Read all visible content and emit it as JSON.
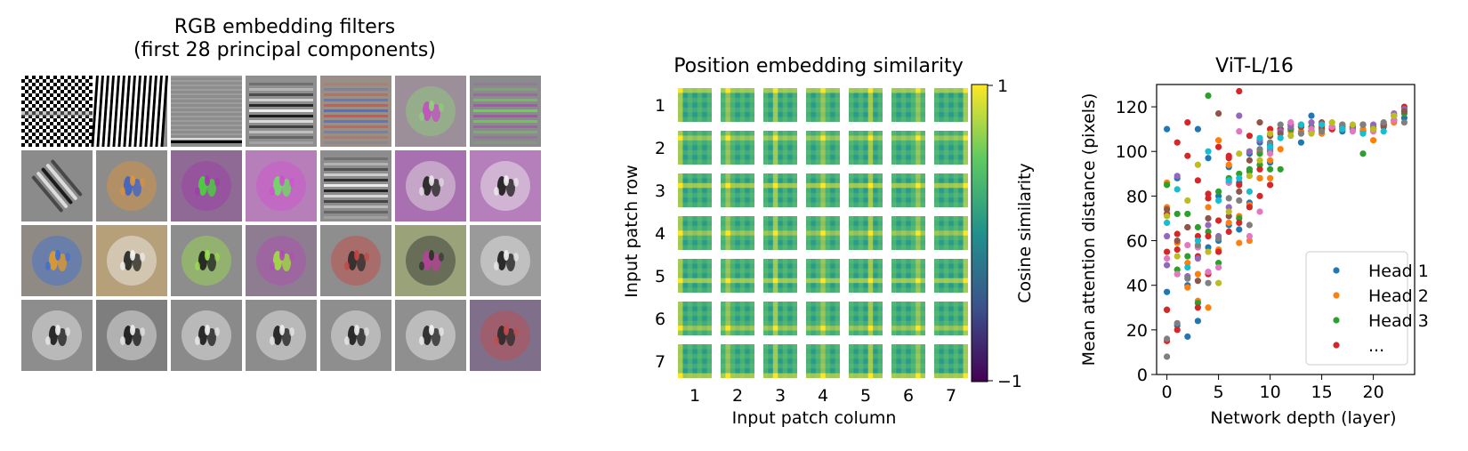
{
  "panels": {
    "filters": {
      "title_line1": "RGB embedding filters",
      "title_line2": "(first 28 principal components)",
      "rows": 4,
      "cols": 7,
      "filters": [
        {
          "kind": "checker",
          "colors": [
            "#000000",
            "#ffffff",
            "#8c8c8c"
          ]
        },
        {
          "kind": "vstripes",
          "colors": [
            "#000000",
            "#ffffff",
            "#8c8c8c"
          ]
        },
        {
          "kind": "bottomline",
          "colors": [
            "#000000",
            "#ffffff",
            "#8c8c8c"
          ]
        },
        {
          "kind": "hstripes",
          "colors": [
            "#111111",
            "#f2f2f2",
            "#8f8f8f"
          ]
        },
        {
          "kind": "hstripes",
          "colors": [
            "#d4524a",
            "#4a6fd4",
            "#9a8f86"
          ]
        },
        {
          "kind": "blob",
          "colors": [
            "#c24fc0",
            "#8fd27a",
            "#9c8f99"
          ]
        },
        {
          "kind": "hstripes",
          "colors": [
            "#b04bb6",
            "#69d44f",
            "#8b8a8c"
          ]
        },
        {
          "kind": "diag",
          "colors": [
            "#1c1c1c",
            "#f0f0f0",
            "#8b8b8b"
          ]
        },
        {
          "kind": "blob",
          "colors": [
            "#3a63c9",
            "#e0923a",
            "#8e8c8a"
          ]
        },
        {
          "kind": "blob",
          "colors": [
            "#46d63a",
            "#a03aa8",
            "#8f6a95"
          ]
        },
        {
          "kind": "blob",
          "colors": [
            "#69e060",
            "#d04fd0",
            "#b77fba"
          ]
        },
        {
          "kind": "hstripes",
          "colors": [
            "#1a1a1a",
            "#efefef",
            "#8d8d8d"
          ]
        },
        {
          "kind": "blob",
          "colors": [
            "#1f1f1f",
            "#e8e8e8",
            "#a870b0"
          ]
        },
        {
          "kind": "blob",
          "colors": [
            "#1a1a1a",
            "#f3f3f3",
            "#b47fbb"
          ]
        },
        {
          "kind": "blob",
          "colors": [
            "#e39a2a",
            "#3b6ed6",
            "#8f8a84"
          ]
        },
        {
          "kind": "blob",
          "colors": [
            "#222222",
            "#f5f5f5",
            "#b6a07a"
          ]
        },
        {
          "kind": "blob",
          "colors": [
            "#1d1d1d",
            "#9be04d",
            "#8d8d8d"
          ]
        },
        {
          "kind": "blob",
          "colors": [
            "#a1e03e",
            "#b04bb6",
            "#8e7d91"
          ]
        },
        {
          "kind": "blob",
          "colors": [
            "#2b2b2b",
            "#c7433f",
            "#8e8e8e"
          ]
        },
        {
          "kind": "blob",
          "colors": [
            "#b8409a",
            "#2d2d2d",
            "#9aa27a"
          ]
        },
        {
          "kind": "blob",
          "colors": [
            "#1b1b1b",
            "#f0f0f0",
            "#9a9a9a"
          ]
        },
        {
          "kind": "blob",
          "colors": [
            "#1a1a1a",
            "#f0f0f0",
            "#8d8d8d"
          ]
        },
        {
          "kind": "blob",
          "colors": [
            "#141414",
            "#efefef",
            "#7e7e7e"
          ]
        },
        {
          "kind": "blob",
          "colors": [
            "#1a1a1a",
            "#f2f2f2",
            "#8a8a8a"
          ]
        },
        {
          "kind": "blob",
          "colors": [
            "#1c1c1c",
            "#f0f0f0",
            "#8c8c8c"
          ]
        },
        {
          "kind": "blob",
          "colors": [
            "#1b1b1b",
            "#ededed",
            "#8e8e8e"
          ]
        },
        {
          "kind": "blob",
          "colors": [
            "#222222",
            "#f3f3f3",
            "#8f8f8f"
          ]
        },
        {
          "kind": "blob",
          "colors": [
            "#2a2a2a",
            "#c84a4a",
            "#7f6f8a"
          ]
        }
      ]
    },
    "position": {
      "title": "Position embedding similarity",
      "xlabel": "Input patch column",
      "ylabel": "Input patch row",
      "rows": [
        "1",
        "2",
        "3",
        "4",
        "5",
        "6",
        "7"
      ],
      "cols": [
        "1",
        "2",
        "3",
        "4",
        "5",
        "6",
        "7"
      ],
      "colorbar": {
        "label": "Cosine similarity",
        "max": "1",
        "min": "−1"
      },
      "colors": {
        "low": "#440154",
        "mid": "#21918c",
        "high": "#fde725",
        "tile_base": "#2a9a8a",
        "tile_light": "#5fc26a",
        "tile_high": "#e3df3a"
      }
    },
    "vit": {
      "title": "ViT-L/16"
    }
  },
  "chart_data": [
    {
      "type": "scatter",
      "title": "ViT-L/16",
      "xlabel": "Network depth (layer)",
      "ylabel": "Mean attention distance (pixels)",
      "xlim": [
        -1,
        24
      ],
      "ylim": [
        0,
        130
      ],
      "xticks": [
        0,
        5,
        10,
        15,
        20
      ],
      "yticks": [
        0,
        20,
        40,
        60,
        80,
        100,
        120
      ],
      "grid": false,
      "legend_position": "lower-right",
      "legend": [
        "Head 1",
        "Head 2",
        "Head 3",
        "..."
      ],
      "series": [
        {
          "name": "Head 1",
          "color": "#1f77b4",
          "x": [
            0,
            0,
            1,
            1,
            2,
            2,
            3,
            3,
            4,
            4,
            5,
            5,
            6,
            6,
            7,
            7,
            8,
            8,
            9,
            9,
            10,
            10,
            11,
            12,
            13,
            14,
            15,
            16,
            17,
            18,
            19,
            20,
            21,
            22,
            23
          ],
          "y": [
            110,
            37,
            88,
            22,
            40,
            17,
            110,
            24,
            57,
            97,
            80,
            60,
            93,
            67,
            86,
            65,
            99,
            77,
            104,
            88,
            103,
            95,
            110,
            110,
            104,
            116,
            110,
            110,
            109,
            110,
            109,
            110,
            112,
            114,
            115
          ]
        },
        {
          "name": "Head 2",
          "color": "#ff7f0e",
          "x": [
            0,
            0,
            1,
            2,
            2,
            3,
            3,
            4,
            4,
            5,
            5,
            6,
            6,
            7,
            7,
            8,
            8,
            9,
            9,
            10,
            10,
            11,
            12,
            13,
            14,
            15,
            16,
            17,
            18,
            19,
            20,
            21,
            22,
            23
          ],
          "y": [
            86,
            75,
            59,
            50,
            39,
            45,
            33,
            30,
            75,
            56,
            105,
            94,
            68,
            71,
            59,
            76,
            60,
            100,
            88,
            96,
            88,
            101,
            109,
            109,
            111,
            108,
            110,
            111,
            111,
            110,
            105,
            112,
            113,
            118
          ]
        },
        {
          "name": "Head 3",
          "color": "#2ca02c",
          "x": [
            0,
            0,
            1,
            1,
            2,
            2,
            3,
            3,
            4,
            4,
            5,
            5,
            6,
            6,
            7,
            7,
            8,
            8,
            9,
            9,
            10,
            10,
            11,
            12,
            13,
            14,
            15,
            16,
            17,
            18,
            19,
            20,
            21,
            22,
            23
          ],
          "y": [
            85,
            29,
            72,
            47,
            53,
            72,
            66,
            32,
            125,
            64,
            82,
            50,
            88,
            86,
            90,
            70,
            92,
            91,
            94,
            99,
            92,
            100,
            92,
            110,
            112,
            111,
            110,
            111,
            112,
            111,
            99,
            111,
            112,
            116,
            117
          ]
        },
        {
          "name": "...",
          "color": "#d62728",
          "x": [
            0,
            0,
            0,
            0,
            1,
            1,
            1,
            1,
            2,
            2,
            2,
            3,
            3,
            3,
            3,
            4,
            4,
            4,
            4,
            5,
            5,
            5,
            6,
            6,
            6,
            7,
            7,
            7,
            8,
            8,
            9,
            9,
            10,
            10,
            11,
            12,
            13,
            14,
            15,
            16,
            17,
            18,
            19,
            20,
            21,
            22,
            23
          ],
          "y": [
            15,
            29,
            55,
            72,
            104,
            63,
            56,
            20,
            113,
            98,
            66,
            87,
            62,
            53,
            30,
            81,
            79,
            45,
            62,
            69,
            55,
            102,
            64,
            97,
            98,
            127,
            85,
            68,
            107,
            75,
            80,
            92,
            110,
            85,
            110,
            112,
            111,
            109,
            111,
            110,
            110,
            111,
            112,
            110,
            112,
            116,
            120
          ]
        },
        {
          "name": "",
          "color": "#9467bd",
          "x": [
            0,
            0,
            1,
            2,
            3,
            4,
            5,
            6,
            7,
            8,
            9,
            10,
            11,
            12,
            14,
            16,
            18,
            20,
            22,
            23
          ],
          "y": [
            62,
            49,
            89,
            44,
            52,
            67,
            62,
            75,
            116,
            100,
            105,
            101,
            109,
            111,
            113,
            111,
            110,
            112,
            117,
            119
          ]
        },
        {
          "name": "",
          "color": "#8c564b",
          "x": [
            0,
            1,
            2,
            3,
            4,
            5,
            6,
            7,
            8,
            9,
            10,
            11,
            13,
            15,
            17,
            19,
            21,
            22,
            23
          ],
          "y": [
            74,
            60,
            66,
            42,
            70,
            117,
            71,
            82,
            96,
            113,
            107,
            108,
            111,
            113,
            111,
            112,
            111,
            114,
            118
          ]
        },
        {
          "name": "",
          "color": "#e377c2",
          "x": [
            0,
            1,
            2,
            3,
            4,
            5,
            6,
            7,
            8,
            9,
            10,
            12,
            14,
            16,
            18,
            20,
            22
          ],
          "y": [
            52,
            45,
            58,
            57,
            46,
            48,
            86,
            109,
            62,
            73,
            99,
            113,
            110,
            111,
            109,
            109,
            114
          ]
        },
        {
          "name": "",
          "color": "#7f7f7f",
          "x": [
            0,
            0,
            1,
            2,
            3,
            4,
            5,
            6,
            7,
            8,
            9,
            10,
            11,
            13,
            15,
            17,
            19,
            21,
            23
          ],
          "y": [
            8,
            16,
            23,
            43,
            58,
            41,
            61,
            79,
            78,
            67,
            101,
            104,
            112,
            108,
            109,
            112,
            112,
            113,
            113
          ]
        },
        {
          "name": "",
          "color": "#bcbd22",
          "x": [
            0,
            1,
            2,
            3,
            4,
            5,
            6,
            7,
            8,
            9,
            10,
            12,
            14,
            16,
            18,
            20,
            22
          ],
          "y": [
            71,
            53,
            78,
            94,
            55,
            41,
            73,
            99,
            89,
            96,
            108,
            107,
            108,
            113,
            112,
            110,
            116
          ]
        },
        {
          "name": "",
          "color": "#17becf",
          "x": [
            0,
            1,
            2,
            3,
            4,
            5,
            6,
            7,
            8,
            9,
            10,
            11,
            13,
            15,
            17,
            19,
            21
          ],
          "y": [
            68,
            83,
            48,
            60,
            100,
            78,
            87,
            88,
            82,
            106,
            102,
            106,
            112,
            112,
            110,
            108,
            109
          ]
        }
      ]
    }
  ]
}
